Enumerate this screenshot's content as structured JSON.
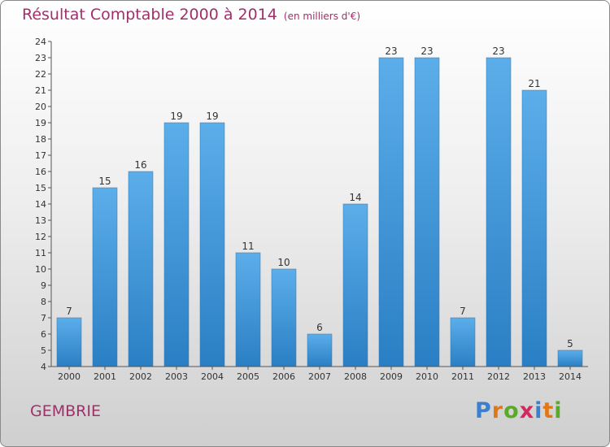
{
  "header": {
    "title": "Résultat Comptable 2000 à 2014",
    "unit": "(en milliers d'€)"
  },
  "footer": {
    "place": "GEMBRIE",
    "brand": "Proxiti"
  },
  "colors": {
    "title": "#a0306a",
    "bar_top": "#5caeea",
    "bar_bottom": "#2a7fc4",
    "brand_letters": [
      "#3b7fd0",
      "#e0781a",
      "#5aaa2a",
      "#d02a60",
      "#3b7fd0",
      "#e0781a",
      "#5aaa2a"
    ]
  },
  "chart_data": {
    "type": "bar",
    "title": "Résultat Comptable 2000 à 2014",
    "subtitle": "(en milliers d'€)",
    "xlabel": "",
    "ylabel": "",
    "categories": [
      "2000",
      "2001",
      "2002",
      "2003",
      "2004",
      "2005",
      "2006",
      "2007",
      "2008",
      "2009",
      "2010",
      "2011",
      "2012",
      "2013",
      "2014"
    ],
    "values": [
      7,
      15,
      16,
      19,
      19,
      11,
      10,
      6,
      14,
      23,
      23,
      7,
      23,
      21,
      5
    ],
    "ylim": [
      4,
      24
    ],
    "yticks": [
      4,
      5,
      6,
      7,
      8,
      9,
      10,
      11,
      12,
      13,
      14,
      15,
      16,
      17,
      18,
      19,
      20,
      21,
      22,
      23,
      24
    ],
    "grid": false,
    "legend": "none"
  }
}
